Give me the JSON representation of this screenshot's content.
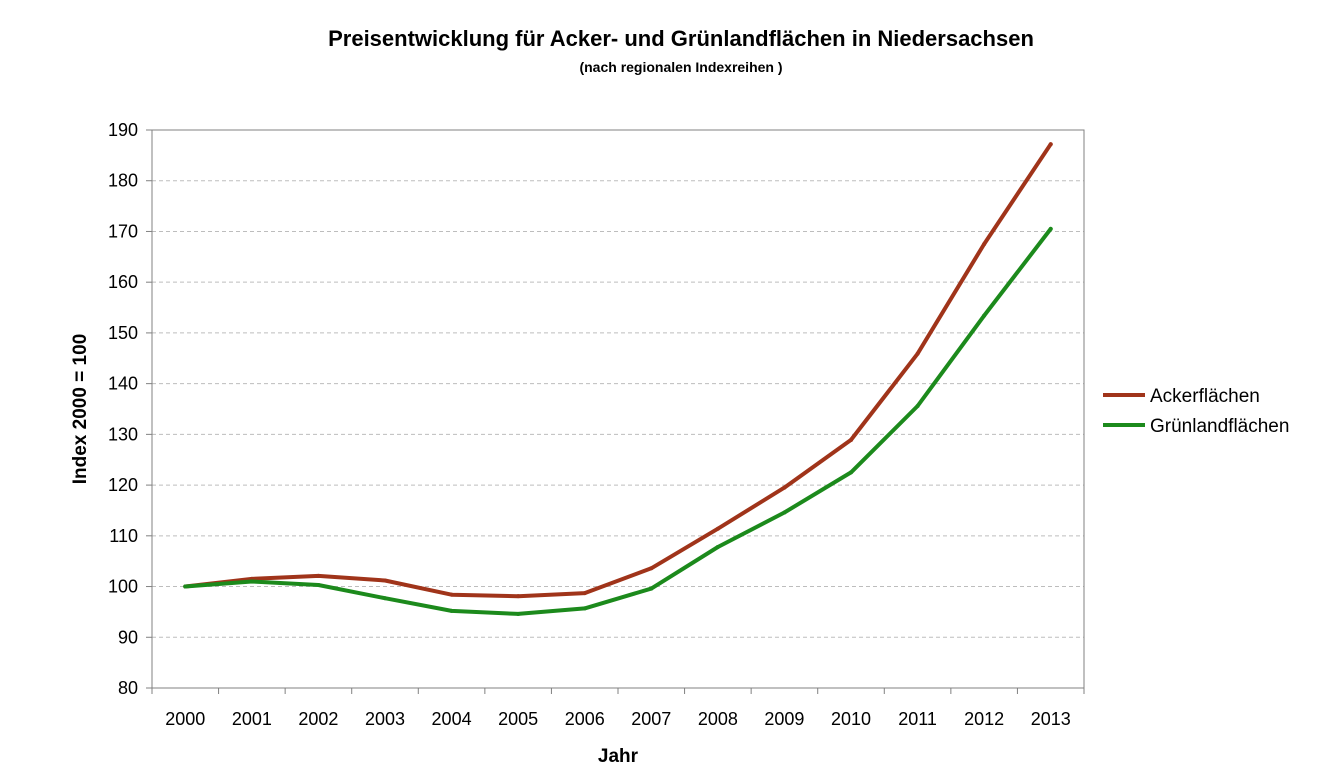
{
  "chart_data": {
    "type": "line",
    "title": "Preisentwicklung für Acker- und Grünlandflächen in Niedersachsen",
    "subtitle": "(nach regionalen Indexreihen )",
    "xlabel": "Jahr",
    "ylabel": "Index 2000 = 100",
    "categories": [
      "2000",
      "2001",
      "2002",
      "2003",
      "2004",
      "2005",
      "2006",
      "2007",
      "2008",
      "2009",
      "2010",
      "2011",
      "2012",
      "2013"
    ],
    "ylim": [
      80,
      190
    ],
    "yticks": [
      80,
      90,
      100,
      110,
      120,
      130,
      140,
      150,
      160,
      170,
      180,
      190
    ],
    "grid": "horizontal dashed",
    "legend_position": "right",
    "series": [
      {
        "name": "Ackerflächen",
        "color": "#a0341a",
        "values": [
          100,
          101.5,
          102.1,
          101.2,
          98.4,
          98.1,
          98.7,
          103.6,
          111.4,
          119.5,
          128.9,
          145.9,
          167.5,
          187.2
        ]
      },
      {
        "name": "Grünlandflächen",
        "color": "#1c8a1c",
        "values": [
          100,
          101.0,
          100.3,
          97.7,
          95.2,
          94.6,
          95.7,
          99.6,
          107.8,
          114.6,
          122.5,
          135.6,
          153.4,
          170.5
        ]
      }
    ]
  }
}
